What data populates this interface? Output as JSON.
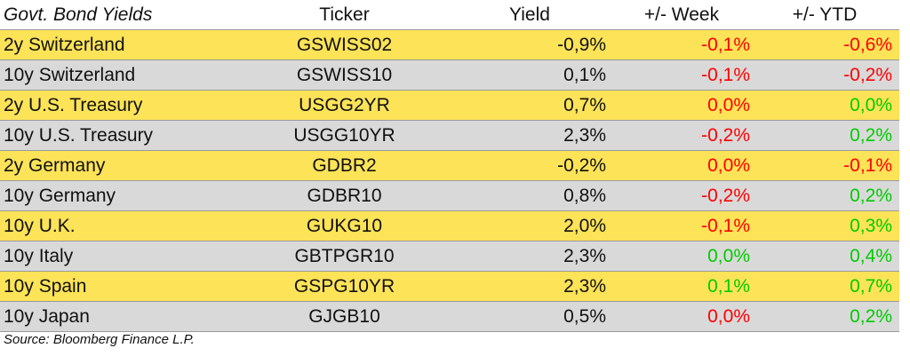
{
  "table": {
    "headers": [
      "Govt. Bond Yields",
      "Ticker",
      "Yield",
      "+/- Week",
      "+/- YTD"
    ],
    "colors": {
      "highlight_row": "#fce357",
      "plain_row": "#d9d9d9",
      "positive": "#00cc00",
      "negative": "#ff0000",
      "text": "#111111"
    },
    "rows": [
      {
        "name": "2y Switzerland",
        "ticker": "GSWISS02",
        "yield": "-0,9%",
        "week": "-0,1%",
        "week_tone": "negative",
        "ytd": "-0,6%",
        "ytd_tone": "negative",
        "highlight": true
      },
      {
        "name": "10y Switzerland",
        "ticker": "GSWISS10",
        "yield": "0,1%",
        "week": "-0,1%",
        "week_tone": "negative",
        "ytd": "-0,2%",
        "ytd_tone": "negative",
        "highlight": false
      },
      {
        "name": "2y U.S. Treasury",
        "ticker": "USGG2YR",
        "yield": "0,7%",
        "week": "0,0%",
        "week_tone": "negative",
        "ytd": "0,0%",
        "ytd_tone": "positive",
        "highlight": true
      },
      {
        "name": "10y U.S. Treasury",
        "ticker": "USGG10YR",
        "yield": "2,3%",
        "week": "-0,2%",
        "week_tone": "negative",
        "ytd": "0,2%",
        "ytd_tone": "positive",
        "highlight": false
      },
      {
        "name": "2y Germany",
        "ticker": "GDBR2",
        "yield": "-0,2%",
        "week": "0,0%",
        "week_tone": "negative",
        "ytd": "-0,1%",
        "ytd_tone": "negative",
        "highlight": true
      },
      {
        "name": "10y Germany",
        "ticker": "GDBR10",
        "yield": "0,8%",
        "week": "-0,2%",
        "week_tone": "negative",
        "ytd": "0,2%",
        "ytd_tone": "positive",
        "highlight": false
      },
      {
        "name": "10y U.K.",
        "ticker": "GUKG10",
        "yield": "2,0%",
        "week": "-0,1%",
        "week_tone": "negative",
        "ytd": "0,3%",
        "ytd_tone": "positive",
        "highlight": true
      },
      {
        "name": "10y Italy",
        "ticker": "GBTPGR10",
        "yield": "2,3%",
        "week": "0,0%",
        "week_tone": "positive",
        "ytd": "0,4%",
        "ytd_tone": "positive",
        "highlight": false
      },
      {
        "name": "10y Spain",
        "ticker": "GSPG10YR",
        "yield": "2,3%",
        "week": "0,1%",
        "week_tone": "positive",
        "ytd": "0,7%",
        "ytd_tone": "positive",
        "highlight": true
      },
      {
        "name": "10y Japan",
        "ticker": "GJGB10",
        "yield": "0,5%",
        "week": "0,0%",
        "week_tone": "negative",
        "ytd": "0,2%",
        "ytd_tone": "positive",
        "highlight": false
      }
    ]
  },
  "source": "Source: Bloomberg Finance L.P."
}
